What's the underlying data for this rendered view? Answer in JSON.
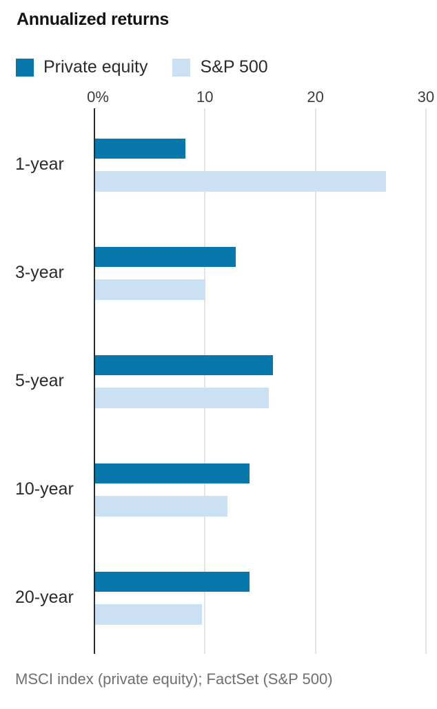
{
  "title": "Annualized returns",
  "footer": "MSCI index (private equity); FactSet (S&P 500)",
  "legend": [
    {
      "label": "Private equity",
      "color": "#0877ab"
    },
    {
      "label": "S&P 500",
      "color": "#cbe0f2"
    }
  ],
  "colors": {
    "private_equity": "#0877ab",
    "sp500": "#cbe0f2",
    "axis": "#2b2b2b",
    "gridline": "#e3e3e3",
    "text": "#2b2b2b",
    "source_text": "#6f6f6f"
  },
  "chart_data": {
    "type": "bar",
    "orientation": "horizontal",
    "title": "Annualized returns",
    "categories": [
      "1-year",
      "3-year",
      "5-year",
      "10-year",
      "20-year"
    ],
    "series": [
      {
        "name": "Private equity",
        "color": "#0877ab",
        "values": [
          8.2,
          12.7,
          16.1,
          14.0,
          14.0
        ]
      },
      {
        "name": "S&P 500",
        "color": "#cbe0f2",
        "values": [
          26.3,
          10.0,
          15.7,
          12.0,
          9.7
        ]
      }
    ],
    "x_axis": {
      "unit": "percent",
      "ticks": [
        "0%",
        "10",
        "20",
        "30"
      ],
      "tick_values": [
        0,
        10,
        20,
        30
      ],
      "min": 0,
      "max": 31
    },
    "grid": true,
    "legend_position": "top",
    "source": "MSCI index (private equity); FactSet (S&P 500)"
  }
}
